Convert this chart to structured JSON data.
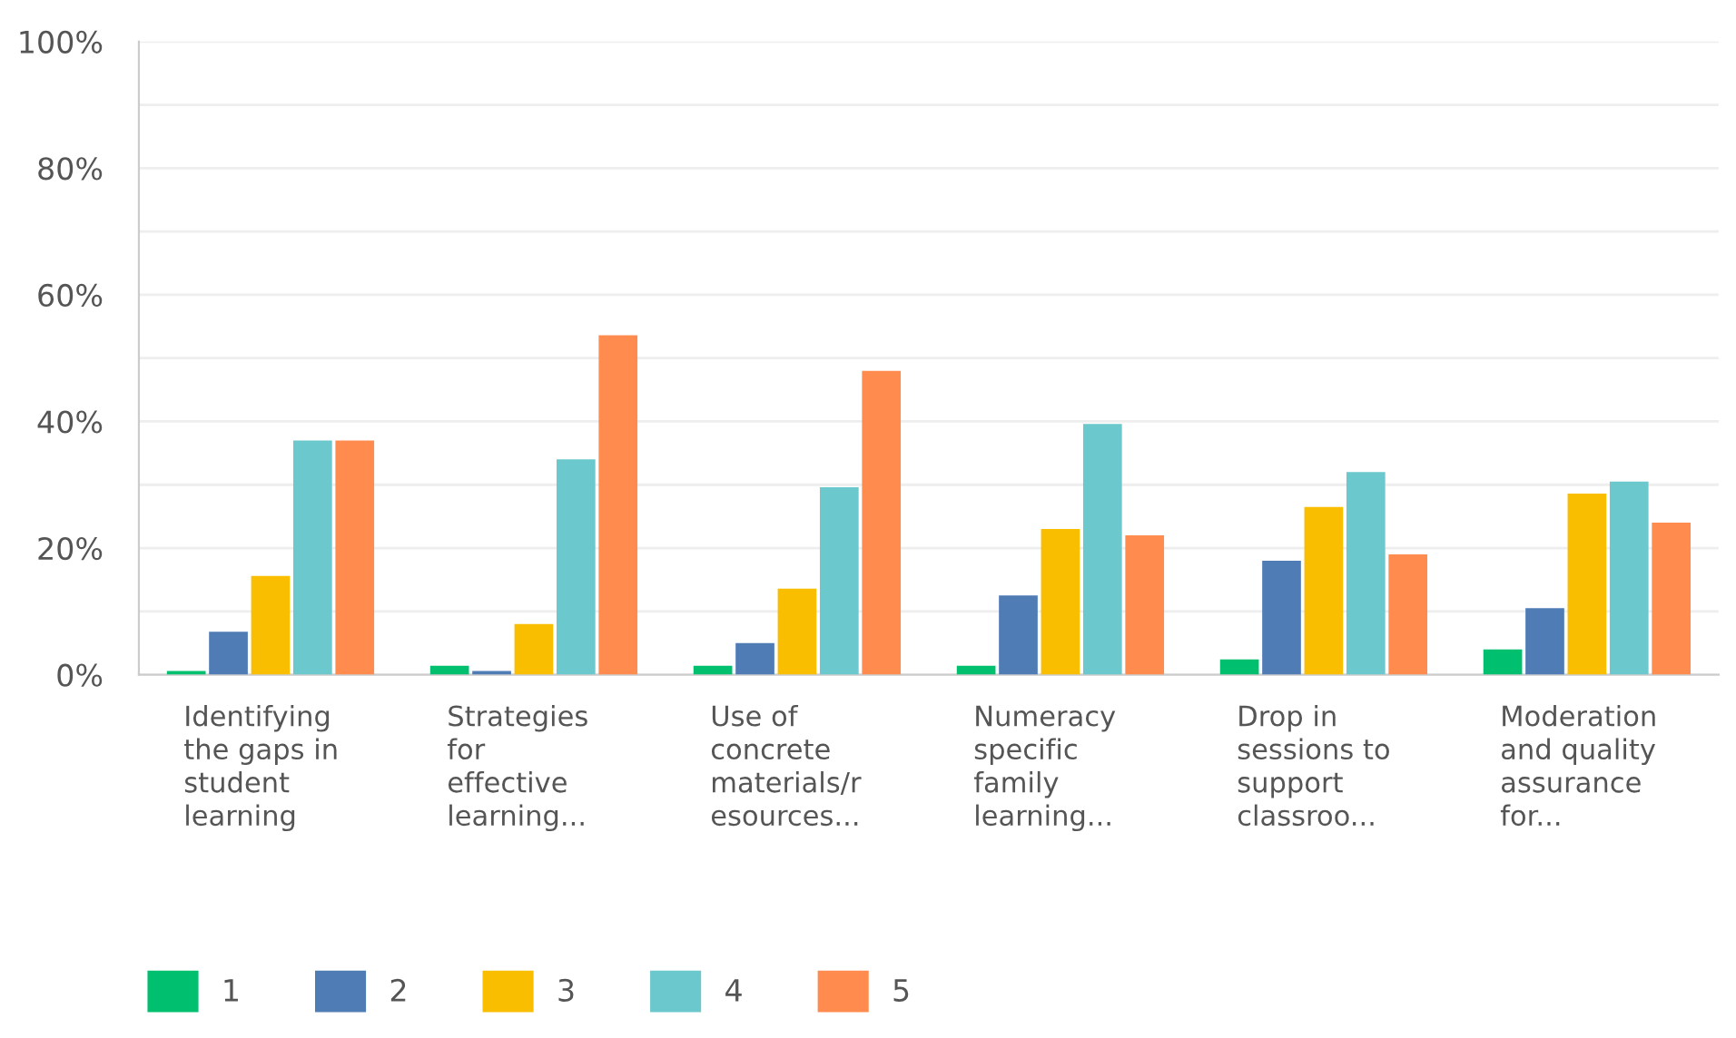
{
  "chart_data": {
    "type": "bar",
    "categories": [
      "Identifying\nthe gaps in\nstudent\nlearning",
      "Strategies\nfor\neffective\nlearning...",
      "Use of\nconcrete\nmaterials/r\nesources...",
      "Numeracy\nspecific\nfamily\nlearning...",
      "Drop in\nsessions to\nsupport\nclassroo...",
      "Moderation\nand quality\nassurance\nfor..."
    ],
    "series": [
      {
        "name": "1",
        "color": "#00bf6f",
        "values": [
          0.6,
          1.4,
          1.4,
          1.4,
          2.4,
          4
        ]
      },
      {
        "name": "2",
        "color": "#507cb6",
        "values": [
          6.8,
          0.6,
          5,
          12.5,
          18,
          10.5
        ]
      },
      {
        "name": "3",
        "color": "#f9be00",
        "values": [
          15.6,
          8,
          13.6,
          23,
          26.5,
          28.6
        ]
      },
      {
        "name": "4",
        "color": "#6bc8cd",
        "values": [
          37,
          34,
          29.6,
          39.6,
          32,
          30.5
        ]
      },
      {
        "name": "5",
        "color": "#ff8b4f",
        "values": [
          37,
          53.6,
          48,
          22,
          19,
          24
        ]
      }
    ],
    "ylim": [
      0,
      100
    ],
    "yticks": [
      {
        "value": 0,
        "label": "0%"
      },
      {
        "value": 10,
        "label": null
      },
      {
        "value": 20,
        "label": "20%"
      },
      {
        "value": 30,
        "label": null
      },
      {
        "value": 40,
        "label": "40%"
      },
      {
        "value": 50,
        "label": null
      },
      {
        "value": 60,
        "label": "60%"
      },
      {
        "value": 70,
        "label": null
      },
      {
        "value": 80,
        "label": "80%"
      },
      {
        "value": 90,
        "label": null
      },
      {
        "value": 100,
        "label": "100%"
      }
    ],
    "grid": "y",
    "legend": "bottom left"
  }
}
